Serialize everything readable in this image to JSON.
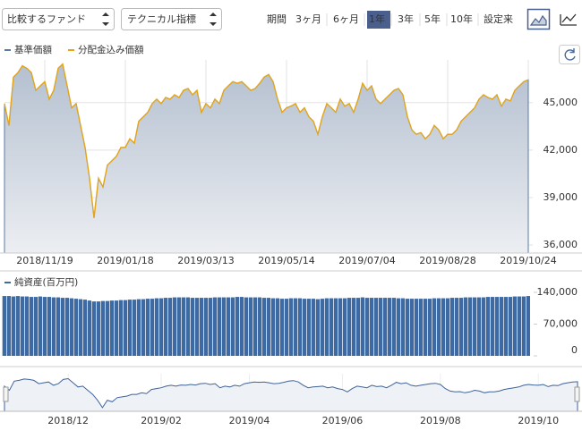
{
  "toolbar": {
    "compare": "比較するファンド",
    "technical": "テクニカル指標",
    "periods": [
      {
        "label": "期間",
        "active": false
      },
      {
        "label": "3ヶ月",
        "active": false
      },
      {
        "label": "6ヶ月",
        "active": false
      },
      {
        "label": "1年",
        "active": true
      },
      {
        "label": "3年",
        "active": false
      },
      {
        "label": "5年",
        "active": false
      },
      {
        "label": "10年",
        "active": false
      },
      {
        "label": "設定来",
        "active": false
      }
    ]
  },
  "chart_data": [
    {
      "type": "line",
      "categories": [
        null,
        null,
        null,
        null,
        null,
        null,
        null,
        null,
        null,
        "2018/11/19",
        null,
        null,
        null,
        null,
        null,
        null,
        null,
        null,
        null,
        null,
        null,
        null,
        null,
        null,
        null,
        null,
        null,
        "2019/01/18",
        null,
        null,
        null,
        null,
        null,
        null,
        null,
        null,
        null,
        null,
        null,
        null,
        null,
        null,
        null,
        null,
        null,
        "2019/03/13",
        null,
        null,
        null,
        null,
        null,
        null,
        null,
        null,
        null,
        null,
        null,
        null,
        null,
        null,
        null,
        null,
        null,
        "2019/05/14",
        null,
        null,
        null,
        null,
        null,
        null,
        null,
        null,
        null,
        null,
        null,
        null,
        null,
        null,
        null,
        null,
        null,
        "2019/07/04",
        null,
        null,
        null,
        null,
        null,
        null,
        null,
        null,
        null,
        null,
        null,
        null,
        null,
        null,
        null,
        null,
        null,
        "2019/08/28",
        null,
        null,
        null,
        null,
        null,
        null,
        null,
        null,
        null,
        null,
        null,
        null,
        null,
        null,
        null,
        null,
        null,
        "2019/10/24"
      ],
      "series": [
        {
          "name": "基準価額",
          "color": "#5a7ba6",
          "area": true,
          "values": [
            44940,
            43560,
            46610,
            46890,
            47330,
            47170,
            46890,
            45780,
            46060,
            46330,
            45220,
            45780,
            47170,
            47440,
            46060,
            44670,
            44940,
            43560,
            42170,
            40220,
            37720,
            40220,
            39670,
            41060,
            41330,
            41610,
            42170,
            42170,
            42720,
            42440,
            43830,
            44110,
            44390,
            44940,
            45220,
            44940,
            45330,
            45220,
            45500,
            45330,
            45780,
            45890,
            45500,
            45780,
            44390,
            44940,
            44670,
            45220,
            44940,
            45780,
            46060,
            46330,
            46220,
            46330,
            46060,
            45780,
            45890,
            46220,
            46610,
            46780,
            46330,
            45220,
            44390,
            44670,
            44780,
            44940,
            44390,
            44670,
            44110,
            43830,
            43000,
            44110,
            44940,
            44670,
            44390,
            45220,
            44780,
            44940,
            44390,
            45220,
            46220,
            45780,
            46060,
            45220,
            44940,
            45220,
            45500,
            45780,
            45890,
            45500,
            44110,
            43280,
            43000,
            43110,
            42720,
            43000,
            43560,
            43280,
            42720,
            43000,
            43000,
            43280,
            43830,
            44110,
            44390,
            44670,
            45220,
            45500,
            45330,
            45220,
            45500,
            44780,
            45220,
            45110,
            45780,
            46060,
            46330,
            46440
          ]
        },
        {
          "name": "分配金込み価額",
          "color": "#e3a51b",
          "area": false,
          "values": [
            44940,
            43560,
            46610,
            46890,
            47330,
            47170,
            46890,
            45780,
            46060,
            46330,
            45220,
            45780,
            47170,
            47440,
            46060,
            44670,
            44940,
            43560,
            42170,
            40220,
            37720,
            40220,
            39670,
            41060,
            41330,
            41610,
            42170,
            42170,
            42720,
            42440,
            43830,
            44110,
            44390,
            44940,
            45220,
            44940,
            45330,
            45220,
            45500,
            45330,
            45780,
            45890,
            45500,
            45780,
            44390,
            44940,
            44670,
            45220,
            44940,
            45780,
            46060,
            46330,
            46220,
            46330,
            46060,
            45780,
            45890,
            46220,
            46610,
            46780,
            46330,
            45220,
            44390,
            44670,
            44780,
            44940,
            44390,
            44670,
            44110,
            43830,
            43000,
            44110,
            44940,
            44670,
            44390,
            45220,
            44780,
            44940,
            44390,
            45220,
            46220,
            45780,
            46060,
            45220,
            44940,
            45220,
            45500,
            45780,
            45890,
            45500,
            44110,
            43280,
            43000,
            43110,
            42720,
            43000,
            43560,
            43280,
            42720,
            43000,
            43000,
            43280,
            43830,
            44110,
            44390,
            44670,
            45220,
            45500,
            45330,
            45220,
            45500,
            44780,
            45220,
            45110,
            45780,
            46060,
            46330,
            46440
          ]
        }
      ],
      "ylim": [
        35500,
        47700
      ],
      "yticks": [
        {
          "value": 36000,
          "label": "36,000"
        },
        {
          "value": 39000,
          "label": "39,000"
        },
        {
          "value": 42000,
          "label": "42,000"
        },
        {
          "value": 45000,
          "label": "45,000"
        }
      ],
      "grid": true
    },
    {
      "type": "bar",
      "series": [
        {
          "name": "純資産(百万円)",
          "color": "#3d6aa3",
          "values": [
            132000,
            132000,
            131000,
            132000,
            131000,
            131000,
            130000,
            130000,
            131000,
            130000,
            130000,
            129000,
            129000,
            128000,
            128000,
            127000,
            126000,
            125000,
            124000,
            122000,
            120000,
            120000,
            121000,
            121000,
            122000,
            122000,
            123000,
            123000,
            124000,
            124000,
            125000,
            125000,
            126000,
            126000,
            127000,
            127000,
            128000,
            128000,
            129000,
            129000,
            129000,
            129000,
            128000,
            128000,
            128000,
            128000,
            128000,
            129000,
            129000,
            129000,
            129000,
            129000,
            130000,
            130000,
            129000,
            129000,
            129000,
            129000,
            128000,
            128000,
            127000,
            127000,
            126000,
            126000,
            127000,
            127000,
            127000,
            126000,
            126000,
            126000,
            125000,
            126000,
            127000,
            127000,
            127000,
            127000,
            127000,
            128000,
            128000,
            128000,
            129000,
            128000,
            128000,
            128000,
            128000,
            128000,
            128000,
            128000,
            127000,
            127000,
            126000,
            126000,
            126000,
            126000,
            126000,
            126000,
            127000,
            127000,
            127000,
            127000,
            128000,
            128000,
            128000,
            129000,
            129000,
            129000,
            129000,
            129000,
            130000,
            130000,
            130000,
            130000,
            130000,
            130000,
            131000,
            131000,
            131000,
            132000
          ]
        }
      ],
      "ylim": [
        0,
        140000
      ],
      "yticks": [
        {
          "value": 0,
          "label": "0"
        },
        {
          "value": 70000,
          "label": "70,000"
        },
        {
          "value": 140000,
          "label": "140,000"
        }
      ]
    },
    {
      "type": "area",
      "categories": [
        null,
        null,
        null,
        null,
        null,
        null,
        null,
        null,
        null,
        null,
        null,
        null,
        null,
        "2018/12",
        null,
        null,
        null,
        null,
        null,
        null,
        null,
        null,
        null,
        null,
        null,
        null,
        null,
        null,
        null,
        null,
        null,
        null,
        "2019/02",
        null,
        null,
        null,
        null,
        null,
        null,
        null,
        null,
        null,
        null,
        null,
        null,
        null,
        null,
        null,
        null,
        null,
        "2019/04",
        null,
        null,
        null,
        null,
        null,
        null,
        null,
        null,
        null,
        null,
        null,
        null,
        null,
        null,
        null,
        null,
        null,
        null,
        "2019/06",
        null,
        null,
        null,
        null,
        null,
        null,
        null,
        null,
        null,
        null,
        null,
        null,
        null,
        null,
        null,
        null,
        null,
        null,
        null,
        "2019/08",
        null,
        null,
        null,
        null,
        null,
        null,
        null,
        null,
        null,
        null,
        null,
        null,
        null,
        null,
        null,
        null,
        null,
        null,
        null,
        "2019/10",
        null,
        null,
        null,
        null,
        null,
        null,
        null,
        null
      ],
      "color": "#3e6399",
      "values": [
        44940,
        43560,
        46610,
        46890,
        47330,
        47170,
        46890,
        45780,
        46060,
        46330,
        45220,
        45780,
        47170,
        47440,
        46060,
        44670,
        44940,
        43560,
        42170,
        40220,
        37720,
        40220,
        39670,
        41060,
        41330,
        41610,
        42170,
        42170,
        42720,
        42440,
        43830,
        44110,
        44390,
        44940,
        45220,
        44940,
        45330,
        45220,
        45500,
        45330,
        45780,
        45890,
        45500,
        45780,
        44390,
        44940,
        44670,
        45220,
        44940,
        45780,
        46060,
        46330,
        46220,
        46330,
        46060,
        45780,
        45890,
        46220,
        46610,
        46780,
        46330,
        45220,
        44390,
        44670,
        44780,
        44940,
        44390,
        44670,
        44110,
        43830,
        43000,
        44110,
        44940,
        44670,
        44390,
        45220,
        44780,
        44940,
        44390,
        45220,
        46220,
        45780,
        46060,
        45220,
        44940,
        45220,
        45500,
        45780,
        45890,
        45500,
        44110,
        43280,
        43000,
        43110,
        42720,
        43000,
        43560,
        43280,
        42720,
        43000,
        43000,
        43280,
        43830,
        44110,
        44390,
        44670,
        45220,
        45500,
        45330,
        45220,
        45500,
        44780,
        45220,
        45110,
        45780,
        46060,
        46330,
        46440
      ],
      "ylim": [
        36500,
        48500
      ]
    }
  ]
}
